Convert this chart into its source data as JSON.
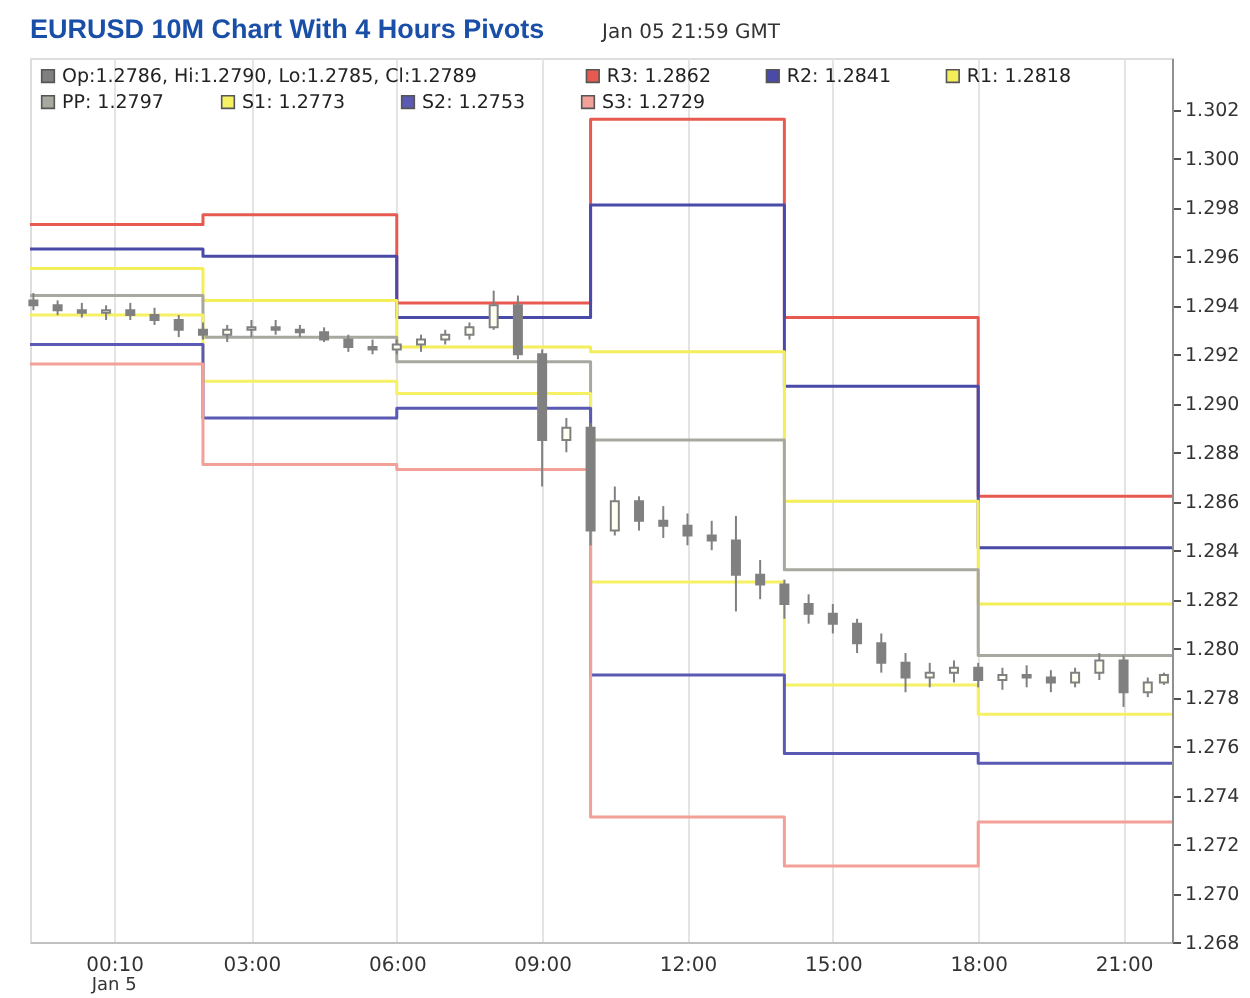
{
  "chart_data": {
    "type": "candlestick",
    "title": "EURUSD 10M Chart With 4 Hours Pivots",
    "subtitle": "Jan 05 21:59 GMT",
    "annotations": [
      "Jan 5"
    ],
    "xlim": [
      -1.57,
      22.0
    ],
    "xticks": [
      {
        "value": 0.1667,
        "label": "00:10"
      },
      {
        "value": 3,
        "label": "03:00"
      },
      {
        "value": 6,
        "label": "06:00"
      },
      {
        "value": 9,
        "label": "09:00"
      },
      {
        "value": 12,
        "label": "12:00"
      },
      {
        "value": 15,
        "label": "15:00"
      },
      {
        "value": 18,
        "label": "18:00"
      },
      {
        "value": 21,
        "label": "21:00"
      }
    ],
    "ylim": [
      1.268,
      1.3041
    ],
    "yticks": [
      1.268,
      {
        "value": 1.27,
        "label": "1.270"
      },
      1.272,
      1.274,
      1.276,
      1.278,
      {
        "value": 1.28,
        "label": "1.280"
      },
      1.282,
      1.284,
      1.286,
      1.288,
      {
        "value": 1.29,
        "label": "1.290"
      },
      1.292,
      1.294,
      1.296,
      1.298,
      {
        "value": 1.3,
        "label": "1.300"
      },
      1.302
    ],
    "grid": "x",
    "legend": "top left",
    "series": [
      {
        "name": "Op:1.2786, Hi:1.2790, Lo:1.2785, Cl:1.2789",
        "color": "#808080",
        "x": [
          -1.5,
          -1.0,
          -0.5,
          0.0,
          0.5,
          1.0,
          1.5,
          2.0,
          2.5,
          3.0,
          3.5,
          4.0,
          4.5,
          5.0,
          5.5,
          6.0,
          6.5,
          7.0,
          7.5,
          8.0,
          8.5,
          9.0,
          9.5,
          10.0,
          10.5,
          11.0,
          11.5,
          12.0,
          12.5,
          13.0,
          13.5,
          14.0,
          14.5,
          15.0,
          15.5,
          16.0,
          16.5,
          17.0,
          17.5,
          18.0,
          18.5,
          19.0,
          19.5,
          20.0,
          20.5,
          21.0,
          21.5,
          21.833
        ],
        "ohlc": [
          [
            1.2942,
            1.2945,
            1.2938,
            1.294
          ],
          [
            1.294,
            1.2942,
            1.2936,
            1.2938
          ],
          [
            1.2938,
            1.2941,
            1.2935,
            1.2937
          ],
          [
            1.2937,
            1.294,
            1.2934,
            1.2938
          ],
          [
            1.2938,
            1.2941,
            1.2934,
            1.2936
          ],
          [
            1.2936,
            1.2939,
            1.2932,
            1.2934
          ],
          [
            1.2934,
            1.2936,
            1.2927,
            1.293
          ],
          [
            1.293,
            1.2933,
            1.2926,
            1.2928
          ],
          [
            1.2928,
            1.2932,
            1.2925,
            1.293
          ],
          [
            1.293,
            1.2934,
            1.2927,
            1.2931
          ],
          [
            1.2931,
            1.2934,
            1.2928,
            1.293
          ],
          [
            1.293,
            1.2932,
            1.2927,
            1.2929
          ],
          [
            1.2929,
            1.2931,
            1.2925,
            1.2926
          ],
          [
            1.2926,
            1.2928,
            1.2921,
            1.2923
          ],
          [
            1.2923,
            1.2926,
            1.292,
            1.2922
          ],
          [
            1.2922,
            1.2926,
            1.292,
            1.2924
          ],
          [
            1.2924,
            1.2928,
            1.2921,
            1.2926
          ],
          [
            1.2926,
            1.293,
            1.2924,
            1.2928
          ],
          [
            1.2928,
            1.2933,
            1.2926,
            1.2931
          ],
          [
            1.2931,
            1.2946,
            1.293,
            1.294
          ],
          [
            1.294,
            1.2944,
            1.2918,
            1.292
          ],
          [
            1.292,
            1.2922,
            1.2866,
            1.2885
          ],
          [
            1.2885,
            1.2894,
            1.288,
            1.289
          ],
          [
            1.289,
            1.2892,
            1.2842,
            1.2848
          ],
          [
            1.2848,
            1.2866,
            1.2846,
            1.286
          ],
          [
            1.286,
            1.2862,
            1.2848,
            1.2852
          ],
          [
            1.2852,
            1.2858,
            1.2845,
            1.285
          ],
          [
            1.285,
            1.2855,
            1.2842,
            1.2846
          ],
          [
            1.2846,
            1.2852,
            1.284,
            1.2844
          ],
          [
            1.2844,
            1.2854,
            1.2815,
            1.283
          ],
          [
            1.283,
            1.2836,
            1.282,
            1.2826
          ],
          [
            1.2826,
            1.2828,
            1.2812,
            1.2818
          ],
          [
            1.2818,
            1.2822,
            1.281,
            1.2814
          ],
          [
            1.2814,
            1.2818,
            1.2806,
            1.281
          ],
          [
            1.281,
            1.2812,
            1.2798,
            1.2802
          ],
          [
            1.2802,
            1.2806,
            1.279,
            1.2794
          ],
          [
            1.2794,
            1.2798,
            1.2782,
            1.2788
          ],
          [
            1.2788,
            1.2794,
            1.2784,
            1.279
          ],
          [
            1.279,
            1.2795,
            1.2786,
            1.2792
          ],
          [
            1.2792,
            1.2794,
            1.2784,
            1.2787
          ],
          [
            1.2787,
            1.2792,
            1.2783,
            1.2789
          ],
          [
            1.2789,
            1.2793,
            1.2784,
            1.2788
          ],
          [
            1.2788,
            1.2791,
            1.2782,
            1.2786
          ],
          [
            1.2786,
            1.2792,
            1.2784,
            1.279
          ],
          [
            1.279,
            1.2798,
            1.2787,
            1.2795
          ],
          [
            1.2795,
            1.2797,
            1.2776,
            1.2782
          ],
          [
            1.2782,
            1.2788,
            1.278,
            1.2786
          ],
          [
            1.2786,
            1.279,
            1.2785,
            1.2789
          ]
        ]
      },
      {
        "name": "R3: 1.2862",
        "type": "step",
        "color": "#e85a50",
        "x": [
          -1.57,
          2,
          6,
          10,
          14,
          18,
          22.0
        ],
        "values": [
          1.2973,
          1.2977,
          1.2941,
          1.3016,
          1.2935,
          1.2862,
          1.2862
        ]
      },
      {
        "name": "R2: 1.2841",
        "type": "step",
        "color": "#4a4aa8",
        "x": [
          -1.57,
          2,
          6,
          10,
          14,
          18,
          22.0
        ],
        "values": [
          1.2963,
          1.296,
          1.2935,
          1.2981,
          1.2907,
          1.2841,
          1.2841
        ]
      },
      {
        "name": "R1: 1.2818",
        "type": "step",
        "color": "#f4ee5a",
        "x": [
          -1.57,
          2,
          6,
          10,
          14,
          18,
          22.0
        ],
        "values": [
          1.2955,
          1.2942,
          1.2923,
          1.2921,
          1.286,
          1.2818,
          1.2818
        ]
      },
      {
        "name": "PP: 1.2797",
        "type": "step",
        "color": "#a8a8a0",
        "x": [
          -1.57,
          2,
          6,
          10,
          14,
          18,
          22.0
        ],
        "values": [
          1.2944,
          1.2927,
          1.2917,
          1.2885,
          1.2832,
          1.2797,
          1.2797
        ]
      },
      {
        "name": "S1: 1.2773",
        "type": "step",
        "color": "#f6f064",
        "x": [
          -1.57,
          2,
          6,
          10,
          14,
          18,
          22.0
        ],
        "values": [
          1.2936,
          1.2909,
          1.2904,
          1.2827,
          1.2785,
          1.2773,
          1.2773
        ]
      },
      {
        "name": "S2: 1.2753",
        "type": "step",
        "color": "#5a5ab4",
        "x": [
          -1.57,
          2,
          6,
          10,
          14,
          18,
          22.0
        ],
        "values": [
          1.2924,
          1.2894,
          1.2898,
          1.2789,
          1.2757,
          1.2753,
          1.2753
        ]
      },
      {
        "name": "S3: 1.2729",
        "type": "step",
        "color": "#f2a098",
        "x": [
          -1.57,
          2,
          6,
          10,
          14,
          18,
          22.0
        ],
        "values": [
          1.2916,
          1.2875,
          1.2873,
          1.2731,
          1.2711,
          1.2729,
          1.2729
        ]
      }
    ]
  }
}
